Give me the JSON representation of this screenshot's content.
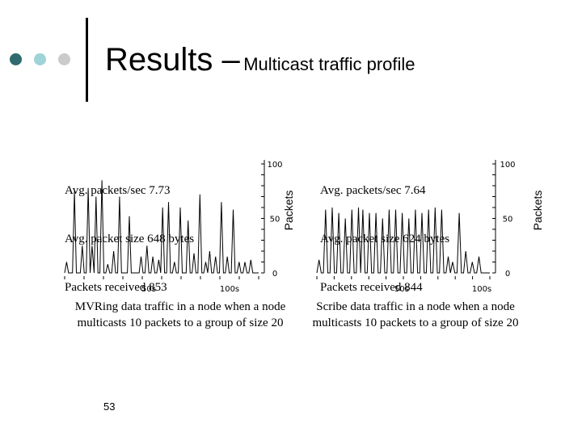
{
  "slide": {
    "title_main": "Results –",
    "title_sub": "Multicast traffic profile",
    "page_number": "53",
    "bullet_dot_colors": [
      "#2f6b6e",
      "#9ed3d8",
      "#c9cbcc"
    ]
  },
  "panels": [
    {
      "stats": [
        "Avg. packets/sec 7.73",
        "Avg. packet size 648 bytes",
        "Packets received 853"
      ],
      "caption": "MVRing data traffic in a node when a node multicasts 10 packets to a group of size 20"
    },
    {
      "stats": [
        "Avg. packets/sec 7.64",
        "Avg. packet size 624 bytes",
        "Packets received 844"
      ],
      "caption": "Scribe data traffic in a node when a node multicasts 10 packets to a group of size 20"
    }
  ],
  "chart_data": [
    {
      "type": "line",
      "ylabel": "Packets",
      "ylim": [
        0,
        100
      ],
      "yticks": [
        0,
        50,
        100
      ],
      "ytick_labels": [
        "0",
        "50",
        "100"
      ],
      "xlim": [
        0,
        120
      ],
      "xticks": [
        50,
        100
      ],
      "xtick_labels": [
        "50s",
        "100s"
      ],
      "series": [
        {
          "values": [
            0,
            10,
            0,
            0,
            0,
            75,
            0,
            0,
            0,
            25,
            0,
            0,
            78,
            0,
            25,
            0,
            70,
            0,
            0,
            85,
            0,
            0,
            8,
            0,
            0,
            20,
            0,
            0,
            70,
            0,
            0,
            0,
            0,
            52,
            0,
            0,
            0,
            0,
            0,
            15,
            0,
            0,
            25,
            0,
            0,
            15,
            0,
            0,
            12,
            0,
            60,
            0,
            0,
            65,
            0,
            0,
            10,
            0,
            0,
            60,
            0,
            0,
            0,
            48,
            0,
            0,
            18,
            0,
            0,
            72,
            0,
            0,
            10,
            0,
            20,
            0,
            0,
            15,
            0,
            0,
            65,
            0,
            0,
            15,
            0,
            0,
            58,
            0,
            0,
            10,
            0,
            0,
            10,
            0,
            0,
            12,
            0,
            0,
            0,
            0
          ]
        }
      ]
    },
    {
      "type": "line",
      "ylabel": "Packets",
      "ylim": [
        0,
        100
      ],
      "yticks": [
        0,
        50,
        100
      ],
      "ytick_labels": [
        "0",
        "50",
        "100"
      ],
      "xlim": [
        0,
        120
      ],
      "xticks": [
        50,
        100
      ],
      "xtick_labels": [
        "50s",
        "100s"
      ],
      "series": [
        {
          "values": [
            0,
            12,
            0,
            0,
            58,
            0,
            0,
            60,
            0,
            0,
            55,
            0,
            0,
            50,
            0,
            0,
            58,
            0,
            0,
            60,
            0,
            58,
            0,
            0,
            55,
            0,
            0,
            55,
            0,
            0,
            50,
            0,
            0,
            58,
            0,
            0,
            58,
            0,
            0,
            55,
            0,
            0,
            50,
            0,
            0,
            58,
            0,
            0,
            55,
            0,
            0,
            58,
            0,
            0,
            60,
            0,
            0,
            58,
            0,
            0,
            15,
            0,
            10,
            0,
            0,
            55,
            0,
            0,
            20,
            0,
            0,
            10,
            0,
            0,
            15,
            0,
            0,
            0,
            0,
            0
          ]
        }
      ]
    }
  ]
}
